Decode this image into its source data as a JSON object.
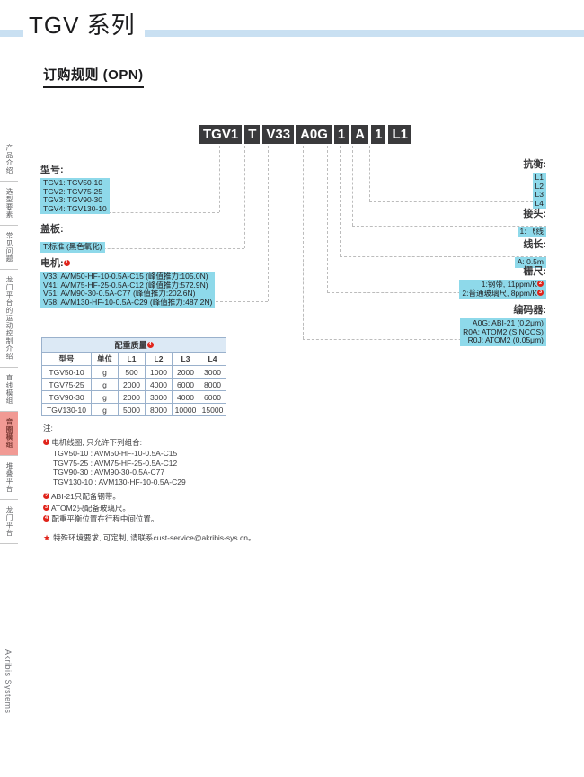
{
  "header": {
    "series_title": "TGV 系列",
    "section_title": "订购规则 (OPN)"
  },
  "part_number": {
    "segments": [
      "TGV1",
      "T",
      "V33",
      "A0G",
      "1",
      "A",
      "1",
      "L1"
    ]
  },
  "callouts_left": [
    {
      "label": "型号:",
      "items": [
        "TGV1: TGV50-10",
        "TGV2: TGV75-25",
        "TGV3: TGV90-30",
        "TGV4: TGV130-10"
      ]
    },
    {
      "label": "盖板:",
      "items": [
        "T:标准 (黑色氧化)"
      ]
    },
    {
      "label": "电机:",
      "note_ref": "1",
      "items": [
        "V33: AVM50-HF-10-0.5A-C15 (峰值推力:105.0N)",
        "V41: AVM75-HF-25-0.5A-C12 (峰值推力:572.9N)",
        "V51: AVM90-30-0.5A-C77 (峰值推力:202.6N)",
        "V58: AVM130-HF-10-0.5A-C29 (峰值推力:487.2N)"
      ]
    }
  ],
  "callouts_right": [
    {
      "label": "抗衡:",
      "items": [
        "L1",
        "L2",
        "L3",
        "L4"
      ]
    },
    {
      "label": "接头:",
      "items": [
        "1: 飞线"
      ]
    },
    {
      "label": "线长:",
      "items": [
        "A: 0.5m"
      ]
    },
    {
      "label": "栅尺:",
      "items": [
        {
          "text": "1:钢带, 11ppm/K",
          "ref": "2"
        },
        {
          "text": "2:普通玻璃尺, 8ppm/K",
          "ref": "3"
        }
      ]
    },
    {
      "label": "编码器:",
      "items": [
        "A0G: ABI-21 (0.2μm)",
        "R0A: ATOM2 (SINCOS)",
        "R0J: ATOM2 (0.05μm)"
      ]
    }
  ],
  "table": {
    "title": "配重质量",
    "note_ref": "4",
    "headers": [
      "型号",
      "单位",
      "L1",
      "L2",
      "L3",
      "L4"
    ],
    "rows": [
      [
        "TGV50-10",
        "g",
        "500",
        "1000",
        "2000",
        "3000"
      ],
      [
        "TGV75-25",
        "g",
        "2000",
        "4000",
        "6000",
        "8000"
      ],
      [
        "TGV90-30",
        "g",
        "2000",
        "3000",
        "4000",
        "6000"
      ],
      [
        "TGV130-10",
        "g",
        "5000",
        "8000",
        "10000",
        "15000"
      ]
    ]
  },
  "notes": {
    "heading": "注:",
    "items": [
      {
        "ref": "1",
        "text": "电机线圈, 只允许下列组合:",
        "sub": [
          "TGV50-10 : AVM50-HF-10-0.5A-C15",
          "TGV75-25 : AVM75-HF-25-0.5A-C12",
          "TGV90-30 : AVM90-30-0.5A-C77",
          "TGV130-10 : AVM130-HF-10-0.5A-C29"
        ]
      },
      {
        "ref": "2",
        "text": "ABI-21只配备钢带。"
      },
      {
        "ref": "3",
        "text": "ATOM2只配备玻璃尺。"
      },
      {
        "ref": "4",
        "text": "配重平衡位置在行程中间位置。"
      }
    ],
    "star_note": "特殊环境要求, 可定制, 请联系cust-service@akribis-sys.cn。"
  },
  "sidebar": {
    "tabs": [
      {
        "label": "产品介绍",
        "active": false
      },
      {
        "label": "选型要素",
        "active": false
      },
      {
        "label": "常见问题",
        "active": false
      },
      {
        "label": "龙门平台的运动控制介绍",
        "active": false
      },
      {
        "label": "直线模组",
        "active": false
      },
      {
        "label": "音圈模组",
        "active": true
      },
      {
        "label": "堆叠平台",
        "active": false
      },
      {
        "label": "龙门平台",
        "active": false
      }
    ],
    "brand": "Akribis Systems"
  },
  "colors": {
    "accent_cyan": "#8ed9ea",
    "stripe_blue": "#c9e0f2",
    "box_dark": "#3a3a3c",
    "note_red": "#e0241b",
    "active_tab_bg": "#f19a94",
    "table_border": "#9ab1cc",
    "table_title_bg": "#dce9f5"
  }
}
